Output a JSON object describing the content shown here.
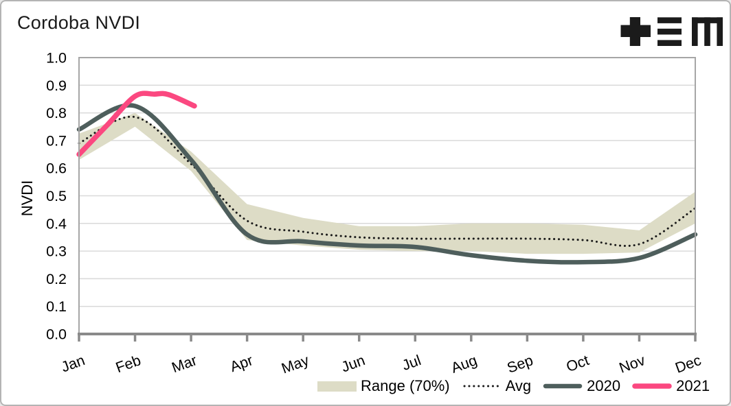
{
  "chart_data": {
    "type": "line",
    "title": "Cordoba NVDI",
    "xlabel": "",
    "ylabel": "NVDI",
    "ylim": [
      0.0,
      1.0
    ],
    "ytick_step": 0.1,
    "y_tick_labels": [
      "1.0",
      "0.9",
      "0.8",
      "0.7",
      "0.6",
      "0.5",
      "0.4",
      "0.3",
      "0.2",
      "0.1",
      "0.0"
    ],
    "categories": [
      "Jan",
      "Feb",
      "Mar",
      "Apr",
      "May",
      "Jun",
      "Jul",
      "Aug",
      "Sep",
      "Oct",
      "Nov",
      "Dec"
    ],
    "grid": "horizontal-only",
    "grid_color": "#d9d9d9",
    "axis_color": "#8a8a8a",
    "border_color": "#a6a6a6",
    "legend_position": "bottom-right",
    "series": [
      {
        "name": "Range (70%)",
        "type": "band",
        "color": "#dddcc6",
        "upper": [
          0.725,
          0.8,
          0.66,
          0.47,
          0.42,
          0.39,
          0.39,
          0.4,
          0.4,
          0.395,
          0.375,
          0.515
        ],
        "lower": [
          0.63,
          0.75,
          0.59,
          0.34,
          0.32,
          0.305,
          0.3,
          0.3,
          0.29,
          0.29,
          0.295,
          0.4
        ]
      },
      {
        "name": "Avg",
        "type": "line",
        "style": "dotted",
        "color": "#1a1a1a",
        "values": [
          0.69,
          0.785,
          0.615,
          0.41,
          0.37,
          0.35,
          0.345,
          0.345,
          0.345,
          0.34,
          0.325,
          0.455
        ]
      },
      {
        "name": "2020",
        "type": "line",
        "style": "solid",
        "color": "#4e5e5c",
        "values": [
          0.74,
          0.825,
          0.63,
          0.36,
          0.335,
          0.32,
          0.315,
          0.285,
          0.265,
          0.26,
          0.275,
          0.36
        ]
      },
      {
        "name": "2021",
        "type": "line",
        "style": "solid",
        "color": "#fb4880",
        "points": [
          [
            1,
            0.65
          ],
          [
            1.5,
            0.755
          ],
          [
            2,
            0.86
          ],
          [
            2.35,
            0.868
          ],
          [
            2.6,
            0.866
          ],
          [
            3.06,
            0.825
          ]
        ]
      }
    ]
  },
  "logo": {
    "name": "tem-logo"
  }
}
